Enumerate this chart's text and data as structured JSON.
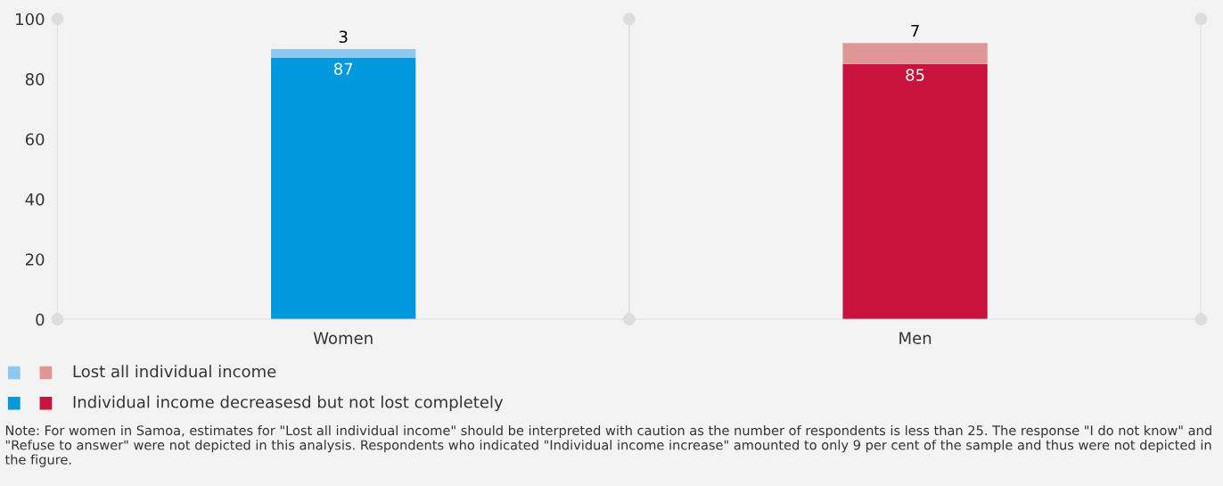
{
  "chart_data": {
    "type": "bar",
    "stacked": true,
    "categories": [
      "Women",
      "Men"
    ],
    "series": [
      {
        "name": "Individual income decreasesd but not lost completely",
        "colors": [
          "#0099dd",
          "#c8133f"
        ],
        "values": [
          87,
          85
        ]
      },
      {
        "name": "Lost all individual income",
        "colors": [
          "#8fc8ee",
          "#e09596"
        ],
        "values": [
          3,
          7
        ]
      }
    ],
    "ylim": [
      0,
      100
    ],
    "yticks": [
      0,
      20,
      40,
      60,
      80,
      100
    ],
    "grid": "x",
    "legend": "bottom left",
    "data_labels": true,
    "annotations": [
      "Note: For women in Samoa, estimates for \"Lost all individual income\" should be interpreted with caution as the number of respondents is less than 25. The response \"I do not know\" and \"Refuse to answer\" were not depicted in this analysis. Respondents who indicated \"Individual income increase\" amounted to only 9 per cent of the sample and thus were not depicted in the figure."
    ]
  }
}
